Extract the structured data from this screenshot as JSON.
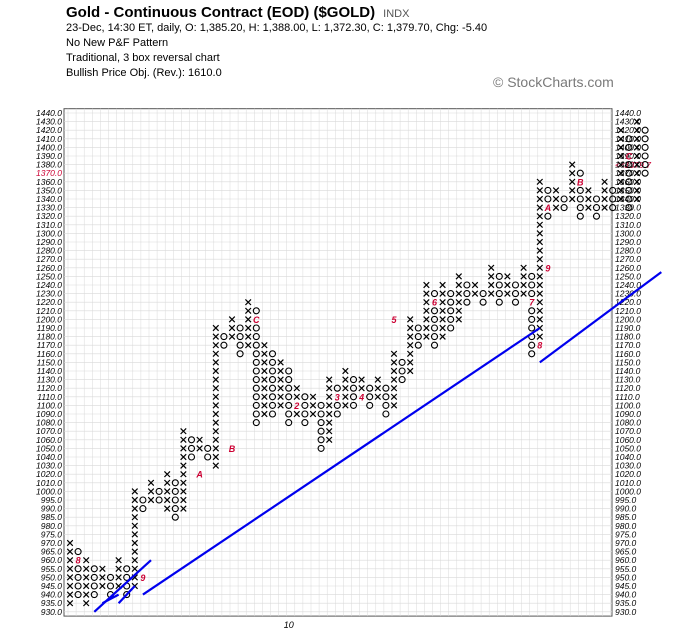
{
  "header": {
    "title": "Gold - Continuous Contract (EOD) ($GOLD)",
    "exchange": "INDX",
    "quote_line": "23-Dec, 14:30 ET, daily, O: 1,385.20, H: 1,388.00, L: 1,372.30, C: 1,379.70, Chg: -5.40",
    "pattern_line": "No New P&F Pattern",
    "chart_type_line": "Traditional, 3 box reversal chart",
    "objective_line": "Bullish Price Obj. (Rev.): 1610.0"
  },
  "copyright": "© StockCharts.com",
  "chart_data": {
    "type": "point-and-figure",
    "box_rule": "Price below 1000: box 5; price 1000 and above: box 10",
    "reversal_boxes": 3,
    "y_range": [
      930,
      1440
    ],
    "y_tick_labels": [
      "1440.0",
      "1430.0",
      "1420.0",
      "1410.0",
      "1400.0",
      "1390.0",
      "1380.0",
      "1370.0",
      "1360.0",
      "1350.0",
      "1340.0",
      "1330.0",
      "1320.0",
      "1310.0",
      "1300.0",
      "1290.0",
      "1280.0",
      "1270.0",
      "1260.0",
      "1250.0",
      "1240.0",
      "1230.0",
      "1220.0",
      "1210.0",
      "1200.0",
      "1190.0",
      "1180.0",
      "1170.0",
      "1160.0",
      "1150.0",
      "1140.0",
      "1130.0",
      "1120.0",
      "1110.0",
      "1100.0",
      "1090.0",
      "1080.0",
      "1070.0",
      "1060.0",
      "1050.0",
      "1040.0",
      "1030.0",
      "1020.0",
      "1010.0",
      "1000.0",
      "995.0",
      "990.0",
      "985.0",
      "980.0",
      "975.0",
      "970.0",
      "965.0",
      "960.0",
      "955.0",
      "950.0",
      "945.0",
      "940.0",
      "935.0",
      "930.0"
    ],
    "highlight_label_left": "1370.0",
    "current_price_label": "<<1379.7",
    "current_price": 1379.7,
    "x_labels": [
      {
        "column": 27,
        "text": "10"
      }
    ],
    "columns": [
      {
        "type": "X",
        "low": 935,
        "high": 970
      },
      {
        "type": "O",
        "low": 940,
        "high": 965
      },
      {
        "type": "X",
        "low": 935,
        "high": 960
      },
      {
        "type": "O",
        "low": 940,
        "high": 955
      },
      {
        "type": "X",
        "low": 945,
        "high": 955
      },
      {
        "type": "O",
        "low": 940,
        "high": 950
      },
      {
        "type": "X",
        "low": 945,
        "high": 960
      },
      {
        "type": "O",
        "low": 940,
        "high": 955
      },
      {
        "type": "X",
        "low": 945,
        "high": 1000
      },
      {
        "type": "O",
        "low": 990,
        "high": 995
      },
      {
        "type": "X",
        "low": 995,
        "high": 1010
      },
      {
        "type": "O",
        "low": 995,
        "high": 1000
      },
      {
        "type": "X",
        "low": 990,
        "high": 1020
      },
      {
        "type": "O",
        "low": 985,
        "high": 1010
      },
      {
        "type": "X",
        "low": 990,
        "high": 1070
      },
      {
        "type": "O",
        "low": 1040,
        "high": 1060
      },
      {
        "type": "X",
        "low": 1050,
        "high": 1060
      },
      {
        "type": "O",
        "low": 1040,
        "high": 1050
      },
      {
        "type": "X",
        "low": 1030,
        "high": 1190
      },
      {
        "type": "O",
        "low": 1170,
        "high": 1180
      },
      {
        "type": "X",
        "low": 1180,
        "high": 1200
      },
      {
        "type": "O",
        "low": 1160,
        "high": 1190
      },
      {
        "type": "X",
        "low": 1170,
        "high": 1220
      },
      {
        "type": "O",
        "low": 1080,
        "high": 1210
      },
      {
        "type": "X",
        "low": 1090,
        "high": 1170
      },
      {
        "type": "O",
        "low": 1090,
        "high": 1160
      },
      {
        "type": "X",
        "low": 1100,
        "high": 1150
      },
      {
        "type": "O",
        "low": 1080,
        "high": 1140
      },
      {
        "type": "X",
        "low": 1090,
        "high": 1120
      },
      {
        "type": "O",
        "low": 1080,
        "high": 1110
      },
      {
        "type": "X",
        "low": 1090,
        "high": 1110
      },
      {
        "type": "O",
        "low": 1050,
        "high": 1100
      },
      {
        "type": "X",
        "low": 1060,
        "high": 1130
      },
      {
        "type": "O",
        "low": 1090,
        "high": 1120
      },
      {
        "type": "X",
        "low": 1100,
        "high": 1140
      },
      {
        "type": "O",
        "low": 1100,
        "high": 1130
      },
      {
        "type": "X",
        "low": 1110,
        "high": 1130
      },
      {
        "type": "O",
        "low": 1100,
        "high": 1120
      },
      {
        "type": "X",
        "low": 1110,
        "high": 1130
      },
      {
        "type": "O",
        "low": 1090,
        "high": 1120
      },
      {
        "type": "X",
        "low": 1100,
        "high": 1160
      },
      {
        "type": "O",
        "low": 1130,
        "high": 1150
      },
      {
        "type": "X",
        "low": 1140,
        "high": 1200
      },
      {
        "type": "O",
        "low": 1170,
        "high": 1190
      },
      {
        "type": "X",
        "low": 1180,
        "high": 1240
      },
      {
        "type": "O",
        "low": 1170,
        "high": 1230
      },
      {
        "type": "X",
        "low": 1180,
        "high": 1240
      },
      {
        "type": "O",
        "low": 1190,
        "high": 1230
      },
      {
        "type": "X",
        "low": 1200,
        "high": 1250
      },
      {
        "type": "O",
        "low": 1220,
        "high": 1240
      },
      {
        "type": "X",
        "low": 1230,
        "high": 1240
      },
      {
        "type": "O",
        "low": 1220,
        "high": 1230
      },
      {
        "type": "X",
        "low": 1230,
        "high": 1260
      },
      {
        "type": "O",
        "low": 1220,
        "high": 1250
      },
      {
        "type": "X",
        "low": 1230,
        "high": 1250
      },
      {
        "type": "O",
        "low": 1220,
        "high": 1240
      },
      {
        "type": "X",
        "low": 1230,
        "high": 1260
      },
      {
        "type": "O",
        "low": 1160,
        "high": 1250
      },
      {
        "type": "X",
        "low": 1170,
        "high": 1360
      },
      {
        "type": "O",
        "low": 1320,
        "high": 1350
      },
      {
        "type": "X",
        "low": 1330,
        "high": 1350
      },
      {
        "type": "O",
        "low": 1330,
        "high": 1340
      },
      {
        "type": "X",
        "low": 1340,
        "high": 1380
      },
      {
        "type": "O",
        "low": 1320,
        "high": 1370
      },
      {
        "type": "X",
        "low": 1330,
        "high": 1350
      },
      {
        "type": "O",
        "low": 1320,
        "high": 1340
      },
      {
        "type": "X",
        "low": 1330,
        "high": 1360
      },
      {
        "type": "O",
        "low": 1330,
        "high": 1350
      },
      {
        "type": "X",
        "low": 1340,
        "high": 1420
      },
      {
        "type": "O",
        "low": 1330,
        "high": 1410
      },
      {
        "type": "X",
        "low": 1340,
        "high": 1430
      },
      {
        "type": "O",
        "low": 1370,
        "high": 1420
      }
    ],
    "month_markers": [
      {
        "column": 1,
        "price": 960,
        "label": "8"
      },
      {
        "column": 9,
        "price": 950,
        "label": "9"
      },
      {
        "column": 16,
        "price": 1020,
        "label": "A"
      },
      {
        "column": 20,
        "price": 1050,
        "label": "B"
      },
      {
        "column": 23,
        "price": 1200,
        "label": "C"
      },
      {
        "column": 28,
        "price": 1100,
        "label": "2"
      },
      {
        "column": 33,
        "price": 1110,
        "label": "3"
      },
      {
        "column": 36,
        "price": 1110,
        "label": "4"
      },
      {
        "column": 40,
        "price": 1200,
        "label": "5"
      },
      {
        "column": 45,
        "price": 1220,
        "label": "6"
      },
      {
        "column": 57,
        "price": 1220,
        "label": "7"
      },
      {
        "column": 58,
        "price": 1170,
        "label": "8"
      },
      {
        "column": 59,
        "price": 1260,
        "label": "9"
      },
      {
        "column": 59,
        "price": 1330,
        "label": "A"
      },
      {
        "column": 63,
        "price": 1360,
        "label": "B"
      },
      {
        "column": 69,
        "price": 1390,
        "label": "C"
      }
    ],
    "trend_lines": [
      {
        "kind": "bullish support",
        "from": {
          "column": 3,
          "price": 930
        },
        "to": {
          "column": 10,
          "price": 960
        }
      },
      {
        "kind": "bullish support",
        "from": {
          "column": 4,
          "price": 935
        },
        "to": {
          "column": 6,
          "price": 940
        }
      },
      {
        "kind": "bullish support",
        "from": {
          "column": 6,
          "price": 935
        },
        "to": {
          "column": 8,
          "price": 945
        }
      },
      {
        "kind": "bullish support",
        "from": {
          "column": 9,
          "price": 940
        },
        "to": {
          "column": 58,
          "price": 1190
        }
      },
      {
        "kind": "bullish support",
        "from": {
          "column": 58,
          "price": 1150
        },
        "to": {
          "column": 73,
          "price": 1255
        }
      }
    ],
    "grid": true,
    "colors": {
      "x": "#000000",
      "o": "#000000",
      "marker": "#cc0033",
      "trend_line": "#0000ee",
      "grid": "#d9d9d9"
    }
  }
}
